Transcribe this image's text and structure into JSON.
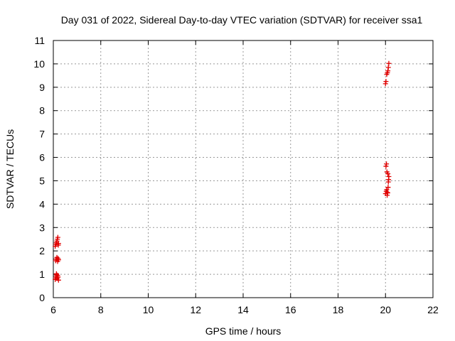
{
  "chart_data": {
    "type": "scatter",
    "title": "Day 031 of 2022, Sidereal Day-to-day VTEC variation (SDTVAR) for receiver ssa1",
    "xlabel": "GPS time / hours",
    "ylabel": "SDTVAR / TECUs",
    "xlim": [
      6,
      22
    ],
    "ylim": [
      0,
      11
    ],
    "xticks": [
      6,
      8,
      10,
      12,
      14,
      16,
      18,
      20,
      22
    ],
    "yticks": [
      0,
      1,
      2,
      3,
      4,
      5,
      6,
      7,
      8,
      9,
      10,
      11
    ],
    "grid": true,
    "marker": "+",
    "series": [
      {
        "name": "SDTVAR",
        "color": "#e00000",
        "points": [
          [
            6.08,
            0.78
          ],
          [
            6.1,
            0.85
          ],
          [
            6.12,
            0.92
          ],
          [
            6.14,
            0.98
          ],
          [
            6.16,
            0.82
          ],
          [
            6.18,
            0.95
          ],
          [
            6.2,
            0.88
          ],
          [
            6.22,
            0.75
          ],
          [
            6.13,
            1.02
          ],
          [
            6.1,
            1.58
          ],
          [
            6.12,
            1.65
          ],
          [
            6.15,
            1.72
          ],
          [
            6.18,
            1.55
          ],
          [
            6.2,
            1.68
          ],
          [
            6.22,
            1.62
          ],
          [
            6.08,
            2.2
          ],
          [
            6.1,
            2.28
          ],
          [
            6.13,
            2.35
          ],
          [
            6.15,
            2.42
          ],
          [
            6.17,
            2.5
          ],
          [
            6.19,
            2.58
          ],
          [
            6.21,
            2.25
          ],
          [
            6.22,
            2.32
          ],
          [
            20.0,
            4.45
          ],
          [
            20.03,
            4.55
          ],
          [
            20.05,
            4.62
          ],
          [
            20.07,
            4.38
          ],
          [
            20.09,
            4.48
          ],
          [
            20.11,
            4.72
          ],
          [
            20.12,
            4.95
          ],
          [
            20.13,
            5.05
          ],
          [
            20.14,
            5.18
          ],
          [
            20.1,
            5.3
          ],
          [
            20.06,
            5.38
          ],
          [
            20.02,
            5.62
          ],
          [
            20.04,
            5.72
          ],
          [
            20.08,
            4.5
          ],
          [
            20.0,
            9.15
          ],
          [
            20.02,
            9.25
          ],
          [
            20.05,
            9.55
          ],
          [
            20.08,
            9.62
          ],
          [
            20.1,
            9.7
          ],
          [
            20.12,
            9.85
          ],
          [
            20.14,
            10.02
          ]
        ]
      }
    ]
  }
}
